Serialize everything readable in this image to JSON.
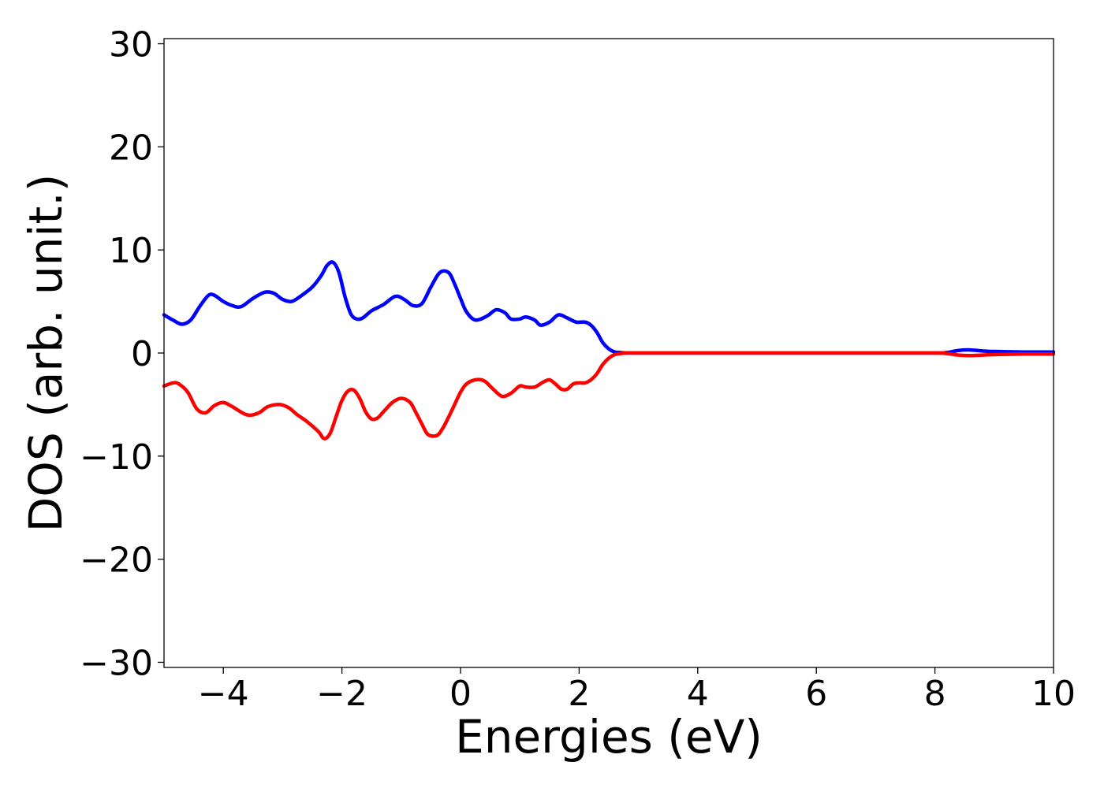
{
  "chart_data": {
    "type": "line",
    "title": "",
    "xlabel": "Energies (eV)",
    "ylabel": "DOS (arb. unit.)",
    "xlim": [
      -5,
      10
    ],
    "ylim": [
      -30.5,
      30.5
    ],
    "xticks": [
      -4,
      -2,
      0,
      2,
      4,
      6,
      8,
      10
    ],
    "xtick_labels": [
      "−4",
      "−2",
      "0",
      "2",
      "4",
      "6",
      "8",
      "10"
    ],
    "yticks": [
      30,
      20,
      10,
      0,
      -10,
      -20,
      -30
    ],
    "ytick_labels": [
      "30",
      "20",
      "10",
      "0",
      "−10",
      "−20",
      "−30"
    ],
    "grid": false,
    "legend": "none",
    "series": [
      {
        "color": "#0000ff",
        "x": [
          -5.0,
          -4.85,
          -4.7,
          -4.55,
          -4.4,
          -4.25,
          -4.15,
          -4.0,
          -3.85,
          -3.7,
          -3.5,
          -3.3,
          -3.15,
          -3.0,
          -2.85,
          -2.7,
          -2.5,
          -2.35,
          -2.25,
          -2.15,
          -2.05,
          -1.95,
          -1.85,
          -1.75,
          -1.65,
          -1.5,
          -1.3,
          -1.1,
          -0.95,
          -0.8,
          -0.65,
          -0.5,
          -0.35,
          -0.2,
          -0.1,
          0.0,
          0.1,
          0.25,
          0.45,
          0.6,
          0.75,
          0.85,
          1.0,
          1.1,
          1.25,
          1.35,
          1.5,
          1.65,
          1.8,
          1.95,
          2.1,
          2.2,
          2.3,
          2.4,
          2.5,
          2.6,
          2.7,
          2.8,
          3.0,
          4.0,
          5.0,
          6.0,
          7.0,
          8.0,
          8.2,
          8.4,
          8.6,
          8.8,
          9.0,
          9.5,
          10.0
        ],
        "y": [
          3.7,
          3.2,
          2.8,
          3.2,
          4.5,
          5.6,
          5.6,
          5.0,
          4.6,
          4.5,
          5.3,
          5.9,
          5.8,
          5.2,
          5.0,
          5.5,
          6.4,
          7.5,
          8.5,
          8.8,
          7.8,
          5.5,
          3.8,
          3.3,
          3.4,
          4.1,
          4.7,
          5.5,
          5.2,
          4.6,
          4.8,
          6.4,
          7.8,
          7.8,
          6.7,
          5.3,
          4.0,
          3.2,
          3.6,
          4.2,
          3.9,
          3.3,
          3.3,
          3.5,
          3.2,
          2.7,
          3.0,
          3.7,
          3.4,
          3.0,
          3.0,
          2.7,
          2.0,
          1.0,
          0.4,
          0.1,
          0.05,
          0.0,
          0.0,
          0.0,
          0.0,
          0.0,
          0.0,
          0.0,
          0.05,
          0.25,
          0.3,
          0.2,
          0.15,
          0.1,
          0.1
        ]
      },
      {
        "color": "#ff0000",
        "x": [
          -5.0,
          -4.85,
          -4.75,
          -4.6,
          -4.45,
          -4.3,
          -4.15,
          -4.0,
          -3.85,
          -3.6,
          -3.4,
          -3.25,
          -3.05,
          -2.9,
          -2.75,
          -2.6,
          -2.4,
          -2.3,
          -2.2,
          -2.1,
          -2.0,
          -1.9,
          -1.8,
          -1.7,
          -1.6,
          -1.5,
          -1.4,
          -1.3,
          -1.15,
          -1.0,
          -0.85,
          -0.75,
          -0.65,
          -0.55,
          -0.4,
          -0.3,
          -0.2,
          -0.1,
          0.0,
          0.1,
          0.25,
          0.4,
          0.55,
          0.7,
          0.85,
          1.0,
          1.1,
          1.25,
          1.4,
          1.5,
          1.6,
          1.7,
          1.8,
          1.9,
          2.0,
          2.1,
          2.2,
          2.3,
          2.4,
          2.5,
          2.6,
          2.7,
          2.8,
          3.0,
          4.0,
          5.0,
          6.0,
          7.0,
          8.0,
          8.2,
          8.4,
          8.6,
          8.8,
          9.0,
          9.5,
          10.0
        ],
        "y": [
          -3.2,
          -2.9,
          -3.0,
          -3.8,
          -5.4,
          -5.8,
          -5.1,
          -4.8,
          -5.2,
          -6.0,
          -5.8,
          -5.2,
          -5.0,
          -5.3,
          -6.0,
          -6.6,
          -7.6,
          -8.3,
          -7.8,
          -6.2,
          -4.6,
          -3.7,
          -3.6,
          -4.4,
          -5.7,
          -6.4,
          -6.3,
          -5.7,
          -4.8,
          -4.4,
          -4.8,
          -5.8,
          -6.9,
          -7.9,
          -8.0,
          -7.3,
          -6.2,
          -5.0,
          -3.8,
          -3.0,
          -2.6,
          -2.7,
          -3.5,
          -4.2,
          -3.9,
          -3.2,
          -3.3,
          -3.3,
          -2.8,
          -2.6,
          -3.0,
          -3.5,
          -3.5,
          -3.0,
          -2.9,
          -2.9,
          -2.6,
          -2.0,
          -1.1,
          -0.5,
          -0.15,
          -0.05,
          0.0,
          0.0,
          0.0,
          0.0,
          0.0,
          0.0,
          0.0,
          -0.05,
          -0.2,
          -0.25,
          -0.2,
          -0.15,
          -0.1,
          -0.1
        ]
      }
    ],
    "line_colors": [
      "#0000ff",
      "#ff0000"
    ]
  }
}
